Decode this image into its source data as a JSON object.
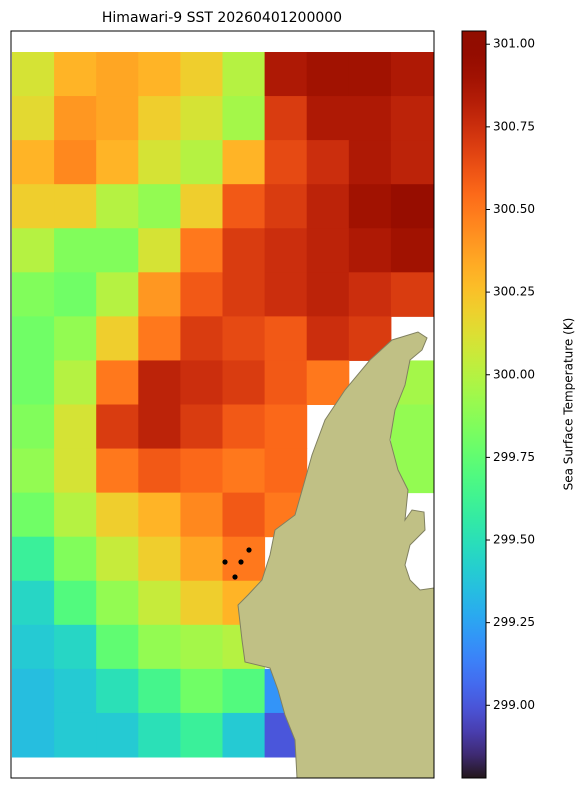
{
  "chart_data": {
    "type": "heatmap",
    "title": "Himawari-9 SST 20260401200000",
    "colorbar_label": "Sea Surface Temperature (K)",
    "colormap": "turbo",
    "clim": [
      298.78,
      301.04
    ],
    "cticks": [
      {
        "value": 299.0,
        "label": "299.00"
      },
      {
        "value": 299.25,
        "label": "299.25"
      },
      {
        "value": 299.5,
        "label": "299.50"
      },
      {
        "value": 299.75,
        "label": "299.75"
      },
      {
        "value": 300.0,
        "label": "300.00"
      },
      {
        "value": 300.25,
        "label": "300.25"
      },
      {
        "value": 300.5,
        "label": "300.50"
      },
      {
        "value": 300.75,
        "label": "300.75"
      },
      {
        "value": 301.0,
        "label": "301.00"
      }
    ],
    "land_color": "#c0c085",
    "grid": [
      [
        300.1,
        300.3,
        300.35,
        300.3,
        300.2,
        300.0,
        300.85,
        300.9,
        300.9,
        300.85
      ],
      [
        300.15,
        300.4,
        300.35,
        300.2,
        300.1,
        299.95,
        300.7,
        300.85,
        300.85,
        300.8
      ],
      [
        300.3,
        300.45,
        300.3,
        300.1,
        300.0,
        300.3,
        300.65,
        300.75,
        300.85,
        300.8
      ],
      [
        300.2,
        300.2,
        300.0,
        299.9,
        300.2,
        300.6,
        300.7,
        300.8,
        300.9,
        300.95
      ],
      [
        300.0,
        299.85,
        299.85,
        300.1,
        300.5,
        300.7,
        300.75,
        300.8,
        300.85,
        300.9
      ],
      [
        299.85,
        299.8,
        300.0,
        300.4,
        300.6,
        300.7,
        300.75,
        300.8,
        300.75,
        300.7
      ],
      [
        299.8,
        299.9,
        300.2,
        300.5,
        300.7,
        300.65,
        300.6,
        300.75,
        300.7,
        null
      ],
      [
        299.8,
        300.0,
        300.5,
        300.8,
        300.75,
        300.7,
        300.6,
        300.5,
        null,
        299.95
      ],
      [
        299.85,
        300.1,
        300.7,
        300.8,
        300.7,
        300.6,
        300.55,
        null,
        null,
        299.9
      ],
      [
        299.9,
        300.1,
        300.5,
        300.6,
        300.55,
        300.5,
        300.55,
        null,
        null,
        299.9
      ],
      [
        299.8,
        300.0,
        300.2,
        300.3,
        300.45,
        300.6,
        300.5,
        null,
        null,
        null
      ],
      [
        299.6,
        299.85,
        300.05,
        300.2,
        300.35,
        300.5,
        null,
        null,
        null,
        null
      ],
      [
        299.45,
        299.7,
        299.9,
        300.05,
        300.2,
        300.3,
        null,
        null,
        null,
        null
      ],
      [
        299.4,
        299.45,
        299.75,
        299.9,
        299.95,
        300.0,
        null,
        null,
        null,
        null
      ],
      [
        299.35,
        299.4,
        299.5,
        299.65,
        299.8,
        299.7,
        299.2,
        null,
        null,
        null
      ],
      [
        299.35,
        299.4,
        299.4,
        299.5,
        299.6,
        299.4,
        299.0,
        null,
        null,
        null
      ]
    ]
  }
}
